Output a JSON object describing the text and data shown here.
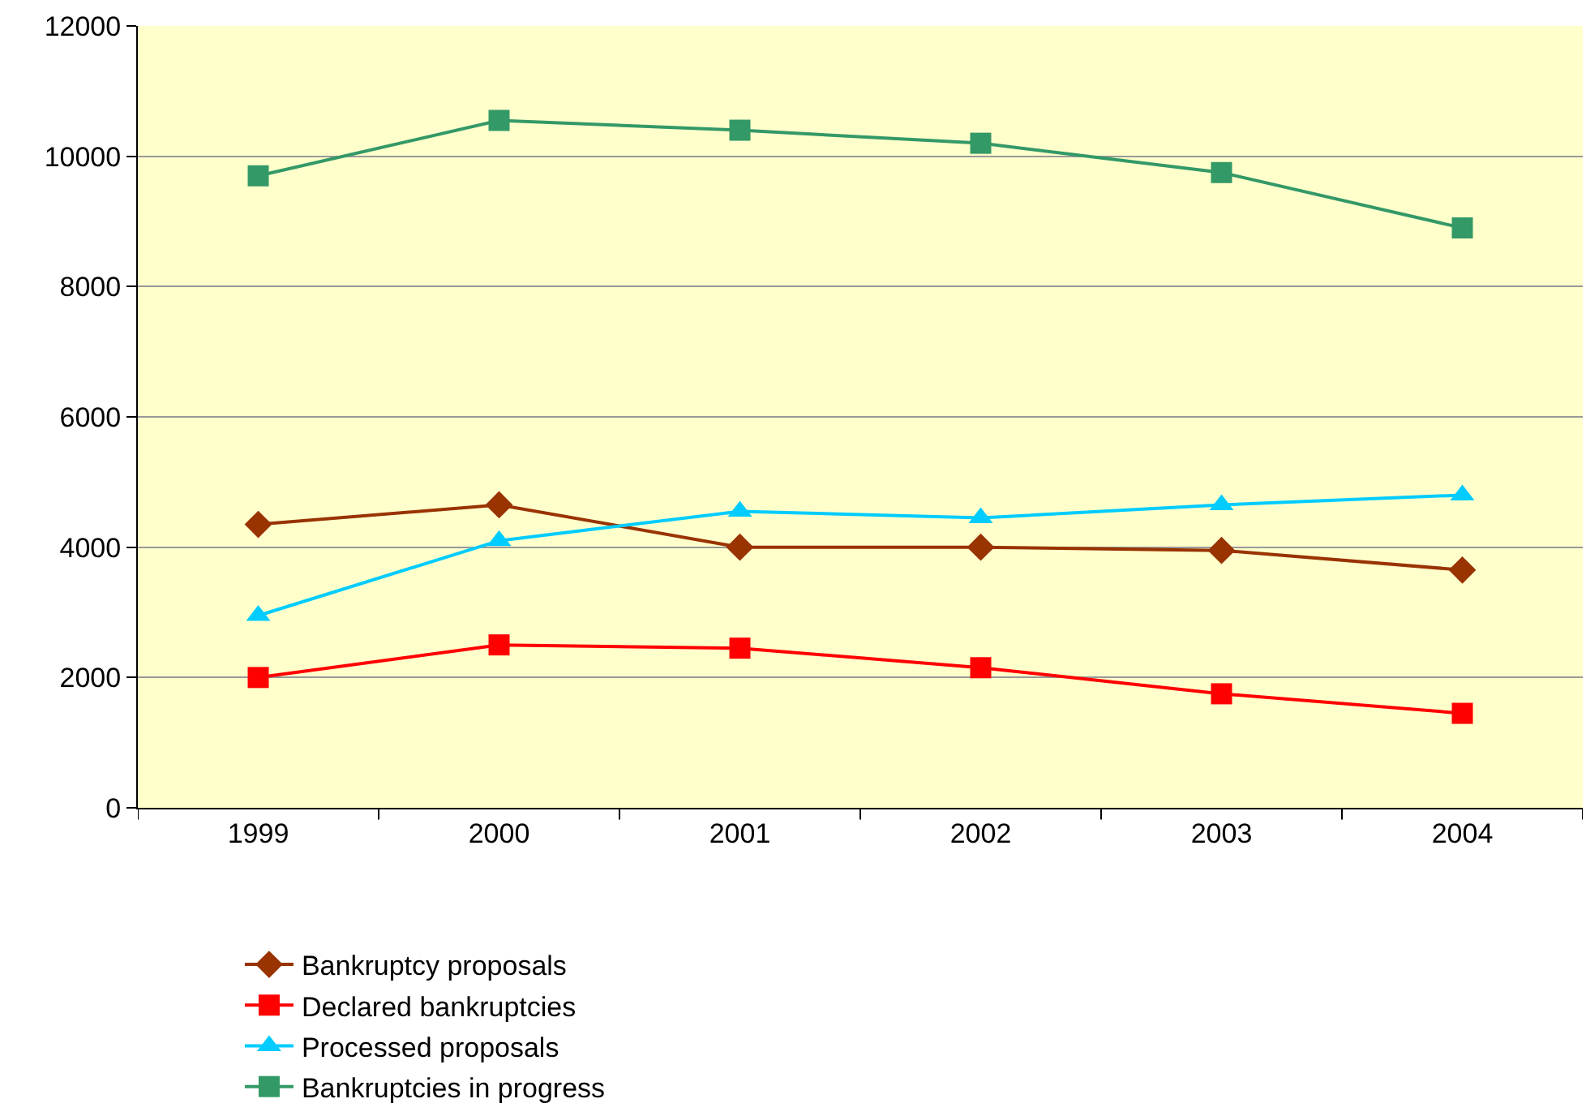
{
  "chart_data": {
    "type": "line",
    "categories": [
      "1999",
      "2000",
      "2001",
      "2002",
      "2003",
      "2004"
    ],
    "series": [
      {
        "name": "Bankruptcy proposals",
        "color": "#993300",
        "marker": "diamond",
        "values": [
          4350,
          4650,
          4000,
          4000,
          3950,
          3650
        ]
      },
      {
        "name": "Declared bankruptcies",
        "color": "#ff0000",
        "marker": "square",
        "values": [
          2000,
          2500,
          2450,
          2150,
          1750,
          1450
        ]
      },
      {
        "name": "Processed proposals",
        "color": "#00ccff",
        "marker": "triangle",
        "values": [
          2950,
          4100,
          4550,
          4450,
          4650,
          4800
        ]
      },
      {
        "name": "Bankruptcies in progress",
        "color": "#339966",
        "marker": "square",
        "values": [
          9700,
          10550,
          10400,
          10200,
          9750,
          8900
        ]
      }
    ],
    "ylim": [
      0,
      12000
    ],
    "yticks": [
      0,
      2000,
      4000,
      6000,
      8000,
      10000,
      12000
    ],
    "grid": "y",
    "legend": "bottom"
  }
}
